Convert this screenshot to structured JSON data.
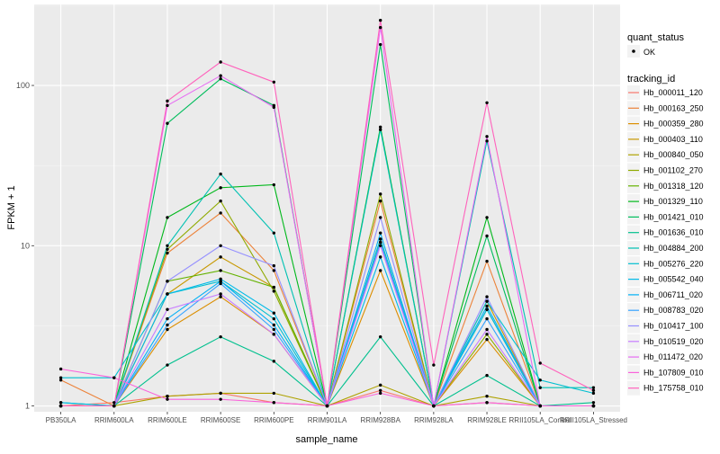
{
  "chart_data": {
    "type": "line",
    "xlabel": "sample_name",
    "ylabel": "FPKM + 1",
    "y_scale": "log10",
    "ylim": [
      0.92,
      320
    ],
    "y_ticks": [
      1,
      10,
      100
    ],
    "y_tick_labels": [
      "1",
      "10",
      "100"
    ],
    "grid": true,
    "legend_position": "right",
    "background_color": "#ebebeb",
    "point_color": "#000000",
    "categories": [
      "PB350LA",
      "RRIM600LA",
      "RRIM600LE",
      "RRIM600SE",
      "RRIM600PE",
      "RRIM901LA",
      "RRIM928BA",
      "RRIM928LA",
      "RRIM928LE",
      "RRII105LA_Control",
      "RRII105LA_Stressed"
    ],
    "legend_quant": {
      "title": "quant_status",
      "entries": [
        "OK"
      ]
    },
    "legend_title": "tracking_id",
    "series": [
      {
        "name": "Hb_000011_120",
        "color": "#F8766D",
        "values": [
          1.0,
          1.05,
          1.15,
          1.2,
          1.05,
          1.0,
          1.25,
          1.0,
          1.05,
          1.0,
          1.0
        ]
      },
      {
        "name": "Hb_000163_250",
        "color": "#EC8239",
        "values": [
          1.45,
          1.0,
          9.0,
          16.0,
          7.0,
          1.0,
          19.0,
          1.0,
          8.0,
          1.0,
          1.0
        ]
      },
      {
        "name": "Hb_000359_280",
        "color": "#DB8E00",
        "values": [
          1.0,
          1.0,
          3.0,
          4.8,
          2.8,
          1.0,
          7.0,
          1.0,
          2.6,
          1.0,
          1.0
        ]
      },
      {
        "name": "Hb_000403_110",
        "color": "#C79800",
        "values": [
          1.0,
          1.0,
          5.0,
          8.5,
          5.5,
          1.0,
          10.5,
          1.0,
          4.5,
          1.0,
          1.0
        ]
      },
      {
        "name": "Hb_000840_050",
        "color": "#AEA200",
        "values": [
          1.0,
          1.0,
          1.15,
          1.2,
          1.2,
          1.0,
          1.35,
          1.0,
          1.15,
          1.0,
          1.0
        ]
      },
      {
        "name": "Hb_001102_270",
        "color": "#8FAA00",
        "values": [
          1.0,
          1.0,
          9.5,
          19.0,
          5.2,
          1.0,
          21.0,
          1.0,
          2.8,
          1.0,
          1.0
        ]
      },
      {
        "name": "Hb_001318_120",
        "color": "#64B200",
        "values": [
          1.0,
          1.0,
          6.0,
          7.0,
          5.5,
          1.0,
          11.0,
          1.0,
          4.0,
          1.0,
          1.0
        ]
      },
      {
        "name": "Hb_001329_110",
        "color": "#00B81B",
        "values": [
          1.0,
          1.0,
          15.0,
          23.0,
          24.0,
          1.0,
          55.0,
          1.0,
          15.0,
          1.0,
          1.0
        ]
      },
      {
        "name": "Hb_001421_010",
        "color": "#00BD5C",
        "values": [
          1.0,
          1.0,
          58.0,
          110.0,
          75.0,
          1.0,
          180.0,
          1.0,
          11.5,
          1.0,
          1.0
        ]
      },
      {
        "name": "Hb_001636_010",
        "color": "#00C08E",
        "values": [
          1.05,
          1.0,
          1.8,
          2.7,
          1.9,
          1.0,
          2.7,
          1.0,
          1.55,
          1.0,
          1.05
        ]
      },
      {
        "name": "Hb_004884_200",
        "color": "#00C1B2",
        "values": [
          1.0,
          1.0,
          10.0,
          28.0,
          12.0,
          1.0,
          53.0,
          1.0,
          45.0,
          1.3,
          1.3
        ]
      },
      {
        "name": "Hb_005276_220",
        "color": "#00BFD0",
        "values": [
          1.5,
          1.5,
          5.0,
          6.0,
          3.5,
          1.0,
          11.0,
          1.0,
          4.5,
          1.45,
          1.2
        ]
      },
      {
        "name": "Hb_005542_040",
        "color": "#00BAE8",
        "values": [
          1.05,
          1.0,
          5.0,
          6.2,
          3.8,
          1.0,
          8.5,
          1.0,
          4.0,
          1.0,
          1.0
        ]
      },
      {
        "name": "Hb_006711_020",
        "color": "#00B0F6",
        "values": [
          1.0,
          1.0,
          3.5,
          6.0,
          3.2,
          1.0,
          12.0,
          1.0,
          4.2,
          1.0,
          1.0
        ]
      },
      {
        "name": "Hb_008783_020",
        "color": "#35A2FF",
        "values": [
          1.0,
          1.0,
          3.2,
          5.8,
          3.0,
          1.0,
          10.5,
          1.0,
          3.5,
          1.0,
          1.0
        ]
      },
      {
        "name": "Hb_010417_100",
        "color": "#9590FF",
        "values": [
          1.0,
          1.0,
          6.0,
          10.0,
          7.5,
          1.0,
          15.0,
          1.0,
          4.8,
          1.0,
          1.0
        ]
      },
      {
        "name": "Hb_010519_020",
        "color": "#C77CFF",
        "values": [
          1.0,
          1.0,
          4.0,
          5.0,
          2.8,
          1.0,
          10.0,
          1.0,
          3.0,
          1.0,
          1.0
        ]
      },
      {
        "name": "Hb_011472_020",
        "color": "#E76BF3",
        "values": [
          1.0,
          1.0,
          75.0,
          115.0,
          73.0,
          1.0,
          230.0,
          1.0,
          48.0,
          1.0,
          1.0
        ]
      },
      {
        "name": "Hb_107809_010",
        "color": "#FA62DB",
        "values": [
          1.7,
          1.5,
          1.1,
          1.1,
          1.05,
          1.0,
          1.2,
          1.0,
          1.05,
          1.0,
          1.0
        ]
      },
      {
        "name": "Hb_175758_010",
        "color": "#FF62BC",
        "values": [
          1.0,
          1.0,
          80.0,
          140.0,
          105.0,
          1.0,
          255.0,
          1.8,
          78.0,
          1.85,
          1.25
        ]
      }
    ]
  }
}
